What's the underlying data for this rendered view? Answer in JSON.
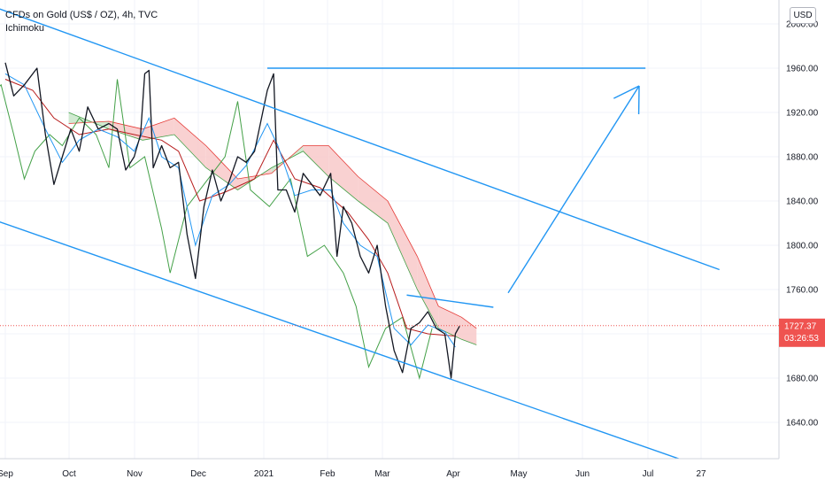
{
  "header": {
    "symbol_title": "CFDs on Gold (US$ / OZ), 4h, TVC",
    "indicator": "Ichimoku"
  },
  "currency_button": "USD",
  "price_badge": {
    "price": "1727.37",
    "countdown": "03:26:53",
    "color": "#ef5350"
  },
  "colors": {
    "price_line": "#131722",
    "tenkan": "#2196f3",
    "kijun": "#b71c1c",
    "chikou": "#43a047",
    "span_a": "#43a047",
    "span_b": "#e53935",
    "cloud_bear": "#f8c9c9",
    "cloud_bull": "#c8e6c9",
    "drawing": "#2196f3",
    "grid": "#f0f3fa"
  },
  "chart_data": {
    "type": "line",
    "x": [
      "Sep",
      "Oct",
      "Nov",
      "Dec",
      "2021",
      "Feb",
      "Mar",
      "Apr",
      "May",
      "Jun",
      "Jul",
      "27"
    ],
    "y_ticks": [
      1640,
      1680,
      1720,
      1760,
      1800,
      1840,
      1880,
      1920,
      1960,
      2000
    ],
    "y_tick_labels": [
      "1640.00",
      "1680.00",
      "1720.00",
      "1760.00",
      "1800.00",
      "1840.00",
      "1880.00",
      "1920.00",
      "1960.00",
      "2000.00"
    ],
    "ylim": [
      1600,
      2010
    ],
    "grid": true,
    "price_path": [
      [
        "2020-09-01",
        1965
      ],
      [
        "2020-09-05",
        1935
      ],
      [
        "2020-09-10",
        1945
      ],
      [
        "2020-09-16",
        1960
      ],
      [
        "2020-09-20",
        1900
      ],
      [
        "2020-09-24",
        1855
      ],
      [
        "2020-09-28",
        1880
      ],
      [
        "2020-10-02",
        1905
      ],
      [
        "2020-10-06",
        1885
      ],
      [
        "2020-10-10",
        1925
      ],
      [
        "2020-10-15",
        1905
      ],
      [
        "2020-10-20",
        1910
      ],
      [
        "2020-10-24",
        1905
      ],
      [
        "2020-10-28",
        1868
      ],
      [
        "2020-11-01",
        1880
      ],
      [
        "2020-11-04",
        1900
      ],
      [
        "2020-11-06",
        1955
      ],
      [
        "2020-11-08",
        1958
      ],
      [
        "2020-11-10",
        1870
      ],
      [
        "2020-11-14",
        1890
      ],
      [
        "2020-11-18",
        1870
      ],
      [
        "2020-11-22",
        1875
      ],
      [
        "2020-11-26",
        1810
      ],
      [
        "2020-11-30",
        1770
      ],
      [
        "2020-12-04",
        1835
      ],
      [
        "2020-12-08",
        1868
      ],
      [
        "2020-12-12",
        1840
      ],
      [
        "2020-12-16",
        1858
      ],
      [
        "2020-12-20",
        1880
      ],
      [
        "2020-12-24",
        1875
      ],
      [
        "2020-12-28",
        1885
      ],
      [
        "2021-01-03",
        1940
      ],
      [
        "2021-01-06",
        1955
      ],
      [
        "2021-01-08",
        1850
      ],
      [
        "2021-01-12",
        1850
      ],
      [
        "2021-01-16",
        1830
      ],
      [
        "2021-01-20",
        1865
      ],
      [
        "2021-01-24",
        1855
      ],
      [
        "2021-01-28",
        1845
      ],
      [
        "2021-02-02",
        1865
      ],
      [
        "2021-02-05",
        1790
      ],
      [
        "2021-02-08",
        1835
      ],
      [
        "2021-02-12",
        1820
      ],
      [
        "2021-02-16",
        1790
      ],
      [
        "2021-02-20",
        1775
      ],
      [
        "2021-02-24",
        1800
      ],
      [
        "2021-02-28",
        1745
      ],
      [
        "2021-03-04",
        1705
      ],
      [
        "2021-03-08",
        1685
      ],
      [
        "2021-03-12",
        1725
      ],
      [
        "2021-03-16",
        1730
      ],
      [
        "2021-03-20",
        1740
      ],
      [
        "2021-03-24",
        1725
      ],
      [
        "2021-03-28",
        1720
      ],
      [
        "2021-03-31",
        1680
      ],
      [
        "2021-04-02",
        1720
      ],
      [
        "2021-04-04",
        1727
      ]
    ],
    "tenkan_path": [
      [
        "2020-09-01",
        1955
      ],
      [
        "2020-09-10",
        1945
      ],
      [
        "2020-09-20",
        1905
      ],
      [
        "2020-09-28",
        1875
      ],
      [
        "2020-10-06",
        1895
      ],
      [
        "2020-10-15",
        1905
      ],
      [
        "2020-10-24",
        1898
      ],
      [
        "2020-11-01",
        1885
      ],
      [
        "2020-11-08",
        1915
      ],
      [
        "2020-11-14",
        1880
      ],
      [
        "2020-11-22",
        1870
      ],
      [
        "2020-11-30",
        1800
      ],
      [
        "2020-12-08",
        1845
      ],
      [
        "2020-12-16",
        1855
      ],
      [
        "2020-12-24",
        1872
      ],
      [
        "2021-01-03",
        1910
      ],
      [
        "2021-01-08",
        1890
      ],
      [
        "2021-01-16",
        1845
      ],
      [
        "2021-01-24",
        1850
      ],
      [
        "2021-02-02",
        1850
      ],
      [
        "2021-02-08",
        1820
      ],
      [
        "2021-02-16",
        1800
      ],
      [
        "2021-02-24",
        1790
      ],
      [
        "2021-03-04",
        1725
      ],
      [
        "2021-03-12",
        1710
      ],
      [
        "2021-03-20",
        1728
      ],
      [
        "2021-03-28",
        1722
      ],
      [
        "2021-04-02",
        1708
      ]
    ],
    "kijun_path": [
      [
        "2020-09-01",
        1950
      ],
      [
        "2020-09-14",
        1940
      ],
      [
        "2020-09-24",
        1915
      ],
      [
        "2020-10-06",
        1900
      ],
      [
        "2020-10-20",
        1905
      ],
      [
        "2020-11-01",
        1900
      ],
      [
        "2020-11-14",
        1895
      ],
      [
        "2020-11-22",
        1885
      ],
      [
        "2020-12-02",
        1840
      ],
      [
        "2020-12-14",
        1848
      ],
      [
        "2020-12-28",
        1860
      ],
      [
        "2021-01-06",
        1895
      ],
      [
        "2021-01-16",
        1860
      ],
      [
        "2021-01-28",
        1852
      ],
      [
        "2021-02-10",
        1830
      ],
      [
        "2021-02-20",
        1805
      ],
      [
        "2021-03-01",
        1775
      ],
      [
        "2021-03-10",
        1725
      ],
      [
        "2021-03-20",
        1720
      ],
      [
        "2021-04-02",
        1718
      ]
    ],
    "chikou_path": [
      [
        "2020-08-20",
        1960
      ],
      [
        "2020-08-25",
        1935
      ],
      [
        "2020-08-30",
        1945
      ],
      [
        "2020-09-05",
        1900
      ],
      [
        "2020-09-10",
        1860
      ],
      [
        "2020-09-15",
        1885
      ],
      [
        "2020-09-22",
        1900
      ],
      [
        "2020-09-28",
        1890
      ],
      [
        "2020-10-06",
        1915
      ],
      [
        "2020-10-14",
        1900
      ],
      [
        "2020-10-20",
        1870
      ],
      [
        "2020-10-24",
        1950
      ],
      [
        "2020-10-30",
        1870
      ],
      [
        "2020-11-06",
        1880
      ],
      [
        "2020-11-14",
        1815
      ],
      [
        "2020-11-18",
        1775
      ],
      [
        "2020-11-26",
        1835
      ],
      [
        "2020-12-04",
        1855
      ],
      [
        "2020-12-14",
        1880
      ],
      [
        "2020-12-20",
        1930
      ],
      [
        "2020-12-26",
        1850
      ],
      [
        "2021-01-04",
        1835
      ],
      [
        "2021-01-14",
        1860
      ],
      [
        "2021-01-22",
        1790
      ],
      [
        "2021-01-30",
        1800
      ],
      [
        "2021-02-08",
        1775
      ],
      [
        "2021-02-14",
        1745
      ],
      [
        "2021-02-20",
        1690
      ],
      [
        "2021-02-28",
        1725
      ],
      [
        "2021-03-08",
        1735
      ],
      [
        "2021-03-16",
        1680
      ],
      [
        "2021-03-22",
        1725
      ]
    ],
    "span_a_path": [
      [
        "2020-10-01",
        1920
      ],
      [
        "2020-10-20",
        1905
      ],
      [
        "2020-11-05",
        1895
      ],
      [
        "2020-11-20",
        1900
      ],
      [
        "2020-12-05",
        1870
      ],
      [
        "2020-12-20",
        1850
      ],
      [
        "2021-01-05",
        1870
      ],
      [
        "2021-01-20",
        1885
      ],
      [
        "2021-02-01",
        1862
      ],
      [
        "2021-02-15",
        1840
      ],
      [
        "2021-03-01",
        1820
      ],
      [
        "2021-03-15",
        1760
      ],
      [
        "2021-03-25",
        1725
      ],
      [
        "2021-04-05",
        1715
      ],
      [
        "2021-04-12",
        1710
      ]
    ],
    "span_b_path": [
      [
        "2020-10-01",
        1910
      ],
      [
        "2020-10-20",
        1912
      ],
      [
        "2020-11-05",
        1905
      ],
      [
        "2020-11-20",
        1915
      ],
      [
        "2020-12-05",
        1890
      ],
      [
        "2020-12-20",
        1860
      ],
      [
        "2021-01-05",
        1865
      ],
      [
        "2021-01-20",
        1890
      ],
      [
        "2021-02-01",
        1890
      ],
      [
        "2021-02-15",
        1862
      ],
      [
        "2021-03-01",
        1840
      ],
      [
        "2021-03-15",
        1790
      ],
      [
        "2021-03-25",
        1745
      ],
      [
        "2021-04-05",
        1735
      ],
      [
        "2021-04-12",
        1725
      ]
    ],
    "drawings": [
      {
        "kind": "upper-channel-line",
        "from": [
          "2020-08-20",
          2020
        ],
        "to": [
          "2021-08-05",
          1778
        ]
      },
      {
        "kind": "lower-channel-line",
        "from": [
          "2020-08-01",
          1840
        ],
        "to": [
          "2021-07-20",
          1605
        ]
      },
      {
        "kind": "horizontal-resistance",
        "from": [
          "2021-01-03",
          1960
        ],
        "to": [
          "2021-07-01",
          1960
        ]
      },
      {
        "kind": "short-trendline",
        "from": [
          "2021-03-10",
          1755
        ],
        "to": [
          "2021-04-20",
          1744
        ]
      },
      {
        "kind": "projection-arrow",
        "from": [
          "2021-04-27",
          1757
        ],
        "to": [
          "2021-06-28",
          1944
        ]
      }
    ]
  }
}
